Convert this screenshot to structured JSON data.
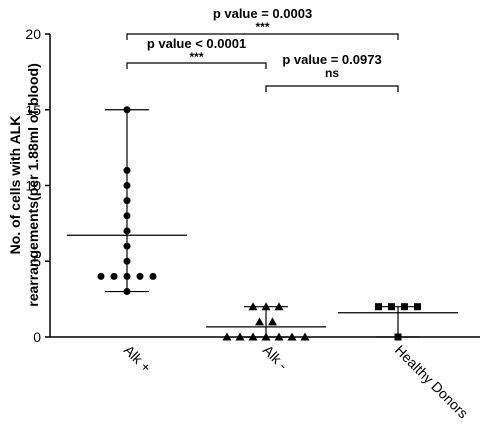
{
  "chart_data": {
    "type": "dotplot",
    "y_label": [
      "No. of cells with ALK",
      "rearrangements(per 1.88ml of blood)"
    ],
    "categories": [
      "Alk +",
      "Alk -",
      "Healthy Donors"
    ],
    "values": [
      [
        15,
        11,
        10,
        9,
        8,
        7,
        6,
        5,
        4,
        4,
        4,
        4,
        4,
        3
      ],
      [
        2,
        2,
        2,
        1,
        1,
        0,
        0,
        0,
        0,
        0,
        0,
        0
      ],
      [
        2,
        2,
        2,
        2,
        0
      ]
    ],
    "markers": [
      "circle",
      "triangle",
      "square"
    ],
    "color": "#000000",
    "ylim": [
      0,
      20
    ],
    "yticks": [
      0,
      5,
      10,
      15,
      20
    ],
    "annotations": [
      {
        "label": "p value = 0.0003",
        "significance": "***"
      },
      {
        "label": "p value < 0.0001",
        "significance": "***"
      },
      {
        "label": "p value = 0.0973",
        "significance": "ns"
      }
    ]
  }
}
